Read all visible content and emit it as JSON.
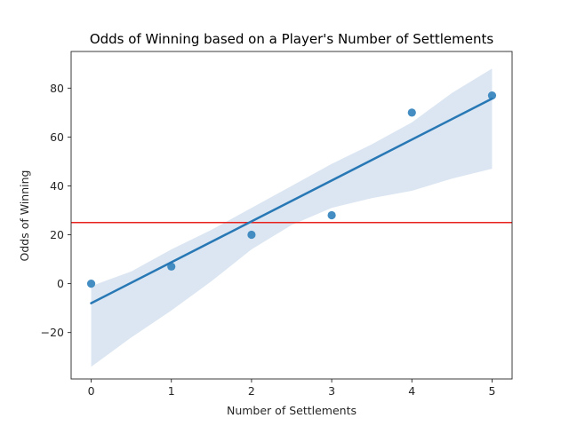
{
  "chart_data": {
    "type": "scatter",
    "title": "Odds of Winning based on a Player's Number of Settlements",
    "xlabel": "Number of Settlements",
    "ylabel": "Odds of Winning",
    "xlim": [
      -0.25,
      5.25
    ],
    "ylim": [
      -39,
      95
    ],
    "xticks": [
      0,
      1,
      2,
      3,
      4,
      5
    ],
    "yticks": [
      -20,
      0,
      20,
      40,
      60,
      80
    ],
    "grid": false,
    "points": [
      {
        "x": 0,
        "y": 0
      },
      {
        "x": 1,
        "y": 7
      },
      {
        "x": 2,
        "y": 20
      },
      {
        "x": 3,
        "y": 28
      },
      {
        "x": 4,
        "y": 70
      },
      {
        "x": 5,
        "y": 77
      }
    ],
    "regression_line": [
      {
        "x": 0,
        "y": -8
      },
      {
        "x": 5,
        "y": 75.7
      }
    ],
    "confidence_band": {
      "upper": [
        {
          "x": 0,
          "y": -1
        },
        {
          "x": 0.5,
          "y": 5
        },
        {
          "x": 1,
          "y": 14
        },
        {
          "x": 1.5,
          "y": 22
        },
        {
          "x": 2,
          "y": 31
        },
        {
          "x": 2.5,
          "y": 40
        },
        {
          "x": 3,
          "y": 49
        },
        {
          "x": 3.5,
          "y": 57
        },
        {
          "x": 4,
          "y": 66
        },
        {
          "x": 4.5,
          "y": 78
        },
        {
          "x": 5,
          "y": 88
        }
      ],
      "lower": [
        {
          "x": 0,
          "y": -34
        },
        {
          "x": 0.5,
          "y": -22
        },
        {
          "x": 1,
          "y": -11
        },
        {
          "x": 1.5,
          "y": 1
        },
        {
          "x": 2,
          "y": 14
        },
        {
          "x": 2.5,
          "y": 24
        },
        {
          "x": 3,
          "y": 31
        },
        {
          "x": 3.5,
          "y": 35
        },
        {
          "x": 4,
          "y": 38
        },
        {
          "x": 4.5,
          "y": 43
        },
        {
          "x": 5,
          "y": 47
        }
      ]
    },
    "reference_line": {
      "y": 25
    },
    "colors": {
      "points": "#3a87bf",
      "regression": "#2878b5",
      "band": "#dbe6f2",
      "reference": "#e8211c",
      "axis": "#262626"
    }
  }
}
